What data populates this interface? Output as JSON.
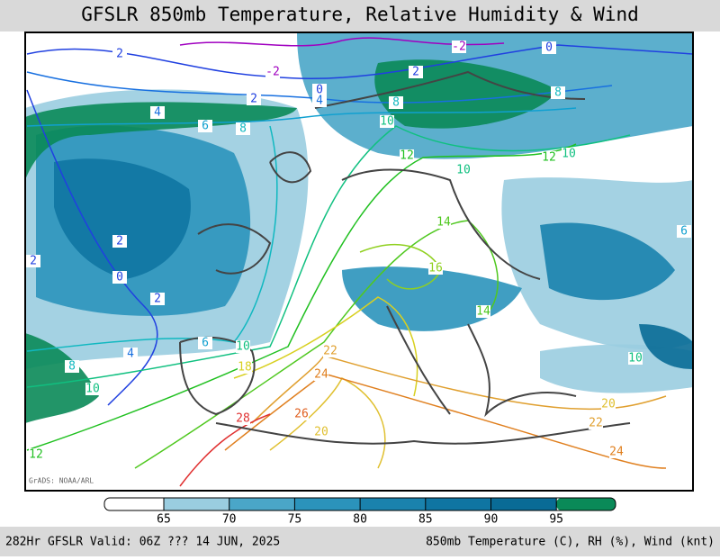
{
  "header": {
    "title": "GFSLR 850mb Temperature, Relative Humidity & Wind"
  },
  "map": {
    "credit": "GrADS: NOAA/ARL",
    "contour_labels": [
      {
        "label": "-2",
        "color": "#a000c0"
      },
      {
        "label": "-2",
        "color": "#a000c0"
      },
      {
        "label": "2",
        "color": "#2040e0"
      },
      {
        "label": "2",
        "color": "#2040e0"
      },
      {
        "label": "2",
        "color": "#2040e0"
      },
      {
        "label": "2",
        "color": "#2040e0"
      },
      {
        "label": "2",
        "color": "#2040e0"
      },
      {
        "label": "2",
        "color": "#2040e0"
      },
      {
        "label": "0",
        "color": "#2040e0"
      },
      {
        "label": "0",
        "color": "#2040e0"
      },
      {
        "label": "0",
        "color": "#2040e0"
      },
      {
        "label": "4",
        "color": "#1870e0"
      },
      {
        "label": "4",
        "color": "#1870e0"
      },
      {
        "label": "4",
        "color": "#1870e0"
      },
      {
        "label": "6",
        "color": "#10a0d0"
      },
      {
        "label": "6",
        "color": "#10a0d0"
      },
      {
        "label": "6",
        "color": "#10a0d0"
      },
      {
        "label": "8",
        "color": "#10b8c0"
      },
      {
        "label": "8",
        "color": "#10b8c0"
      },
      {
        "label": "8",
        "color": "#10b8c0"
      },
      {
        "label": "8",
        "color": "#10b8c0"
      },
      {
        "label": "10",
        "color": "#10c080"
      },
      {
        "label": "10",
        "color": "#10c080"
      },
      {
        "label": "10",
        "color": "#10c080"
      },
      {
        "label": "10",
        "color": "#10c080"
      },
      {
        "label": "10",
        "color": "#10c080"
      },
      {
        "label": "10",
        "color": "#10c080"
      },
      {
        "label": "12",
        "color": "#20c020"
      },
      {
        "label": "12",
        "color": "#20c020"
      },
      {
        "label": "12",
        "color": "#20c020"
      },
      {
        "label": "14",
        "color": "#50c820"
      },
      {
        "label": "14",
        "color": "#50c820"
      },
      {
        "label": "16",
        "color": "#90d020"
      },
      {
        "label": "18",
        "color": "#d8d020"
      },
      {
        "label": "20",
        "color": "#e0c030"
      },
      {
        "label": "20",
        "color": "#e0c030"
      },
      {
        "label": "22",
        "color": "#e0a030"
      },
      {
        "label": "22",
        "color": "#e0a030"
      },
      {
        "label": "24",
        "color": "#e08020"
      },
      {
        "label": "24",
        "color": "#e08020"
      },
      {
        "label": "26",
        "color": "#e06020"
      },
      {
        "label": "28",
        "color": "#e03030"
      }
    ]
  },
  "colorbar": {
    "ticks": [
      65,
      70,
      75,
      80,
      85,
      90,
      95
    ],
    "colors": [
      "#ffffff",
      "#9acde0",
      "#4aa6c8",
      "#2b93bb",
      "#1a82ad",
      "#0f75a2",
      "#096b96",
      "#0a8a58"
    ]
  },
  "footer": {
    "left": "282Hr GFSLR Valid: 06Z ??? 14 JUN, 2025",
    "right": "850mb Temperature (C), RH (%), Wind (knt)"
  }
}
